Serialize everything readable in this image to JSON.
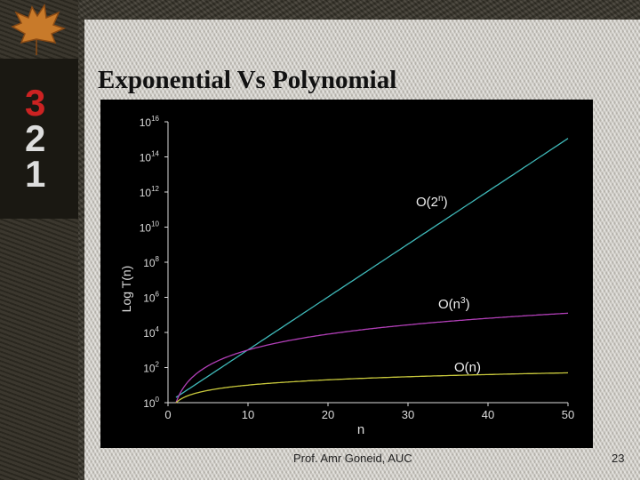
{
  "slide": {
    "title": "Exponential Vs Polynomial",
    "footer": "Prof. Amr Goneid, AUC",
    "page_number": "23"
  },
  "decor": {
    "corner_icon": "maple-leaf-icon",
    "numbers_icon": "numbers-321-icon",
    "numbers_text": [
      "3",
      "2",
      "1"
    ]
  },
  "chart_data": {
    "type": "line",
    "xlabel": "n",
    "ylabel": "Log T(n)",
    "x_ticks": [
      "0",
      "10",
      "20",
      "30",
      "40",
      "50"
    ],
    "y_tick_exponents": [
      "0",
      "2",
      "4",
      "6",
      "8",
      "10",
      "12",
      "14",
      "16"
    ],
    "xlim": [
      0,
      50
    ],
    "ylim": [
      0,
      16
    ],
    "y_scale": "log10",
    "grid": false,
    "series": [
      {
        "name": "O(2ⁿ)",
        "label_base": "O(2",
        "label_sup": "n",
        "label_end": ")",
        "color": "#3fb9b9",
        "function": "2^n"
      },
      {
        "name": "O(n³)",
        "label_base": "O(n",
        "label_sup": "3",
        "label_end": ")",
        "color": "#b23fb8",
        "function": "n^3"
      },
      {
        "name": "O(n)",
        "label_base": "O(n)",
        "label_sup": "",
        "label_end": "",
        "color": "#c9c93c",
        "function": "n"
      }
    ]
  }
}
